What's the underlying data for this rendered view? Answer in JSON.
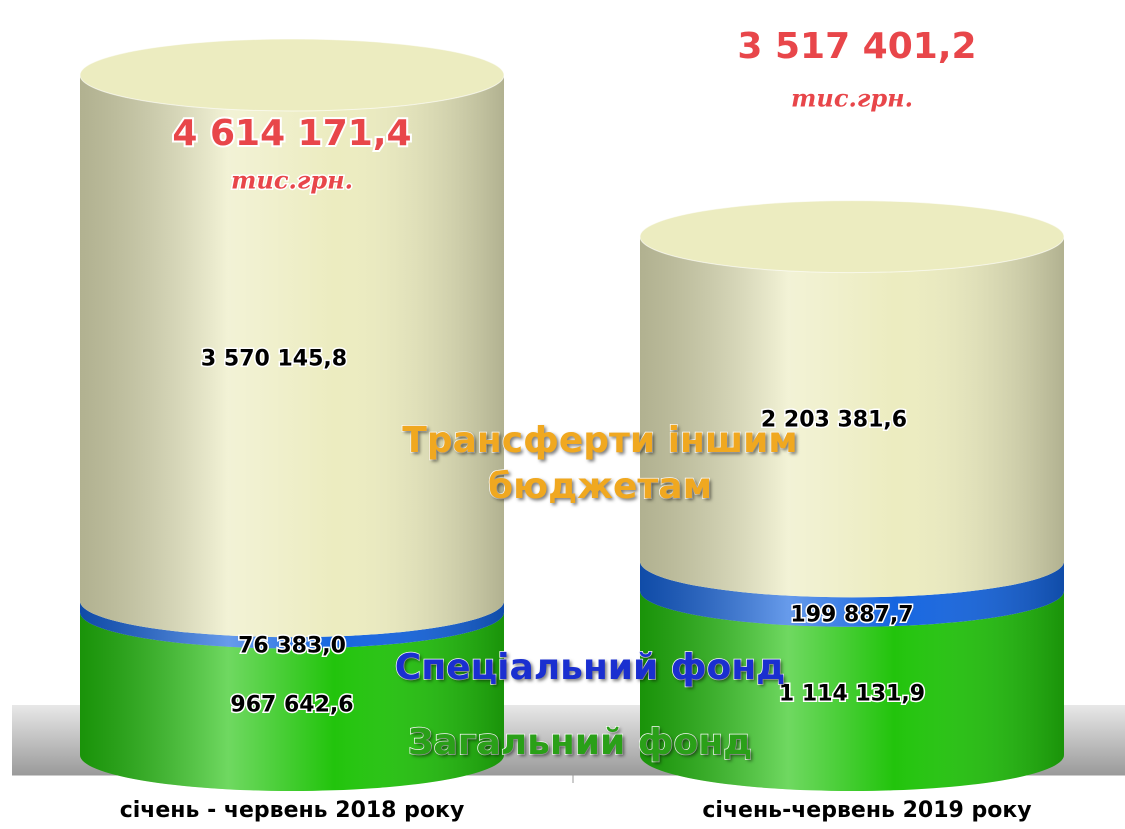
{
  "chart_data": {
    "type": "cylinder",
    "categories": [
      "січень - червень 2018 року",
      "січень-червень 2019 року"
    ],
    "series": [
      {
        "name": "Загальний фонд",
        "color": "#22c40c",
        "values": [
          967642.6,
          1114131.9
        ],
        "value_labels": [
          "967 642,6",
          "1 114 131,9"
        ]
      },
      {
        "name": "Спеціальний фонд",
        "color": "#1565e0",
        "values": [
          76383.0,
          199887.7
        ],
        "value_labels": [
          "76 383,0",
          "199 887,7"
        ]
      },
      {
        "name": "Трансферти іншим бюджетам",
        "color": "#ececc0",
        "values": [
          3570145.8,
          2203381.6
        ],
        "value_labels": [
          "3 570 145,8",
          "2 203 381,6"
        ]
      }
    ],
    "totals": [
      4614171.4,
      3517401.2
    ],
    "total_labels": [
      "4 614 171,4",
      "3 517 401,2"
    ],
    "total_unit": "тис.грн."
  }
}
